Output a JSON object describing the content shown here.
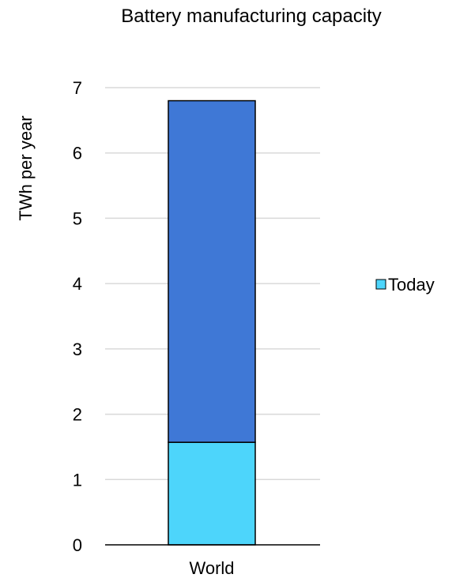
{
  "chart_data": {
    "type": "bar",
    "stacked": true,
    "title": "Battery manufacturing capacity",
    "xlabel": "",
    "ylabel": "TWh per year",
    "categories": [
      "World"
    ],
    "ylim": [
      0,
      7
    ],
    "yticks": [
      0,
      1,
      2,
      3,
      4,
      5,
      6,
      7
    ],
    "grid": true,
    "legend_position": "right",
    "series": [
      {
        "name": "Today",
        "values": [
          1.57
        ],
        "color": "#4dd5fb"
      },
      {
        "values": [
          5.23
        ],
        "color": "#3f78d6"
      }
    ]
  }
}
